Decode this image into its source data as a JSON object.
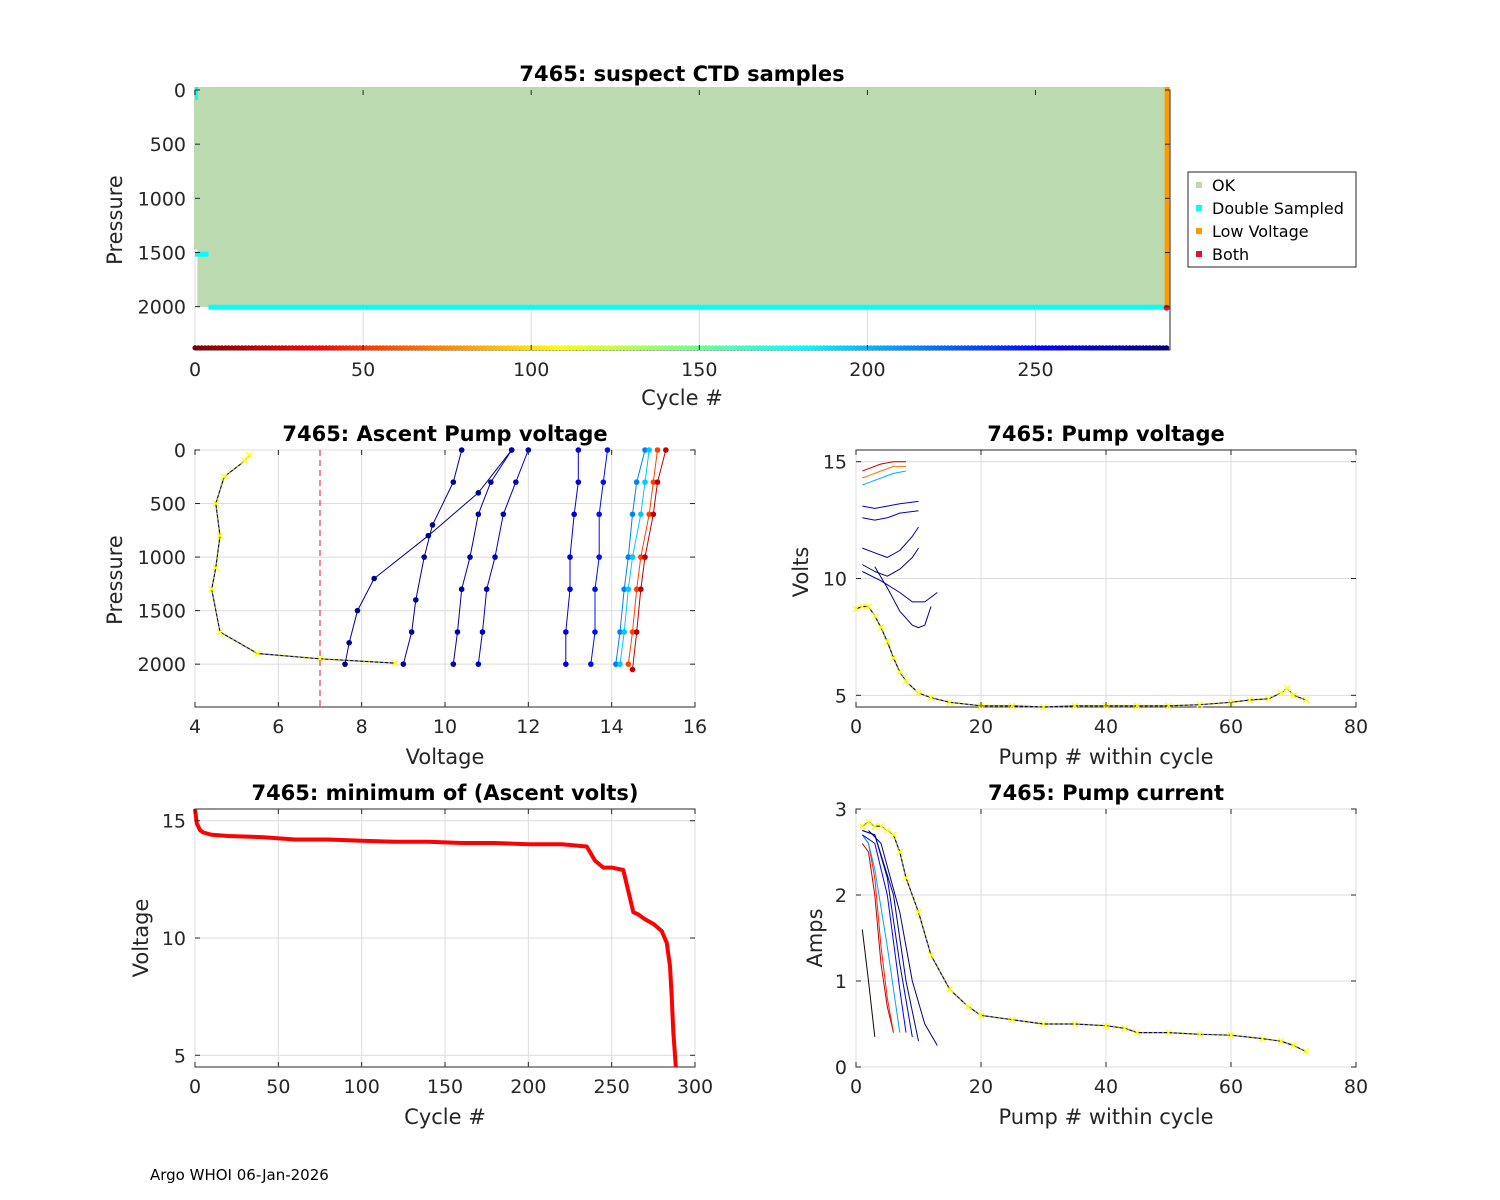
{
  "figure": {
    "footer": "Argo WHOI 06-Jan-2026"
  },
  "colors": {
    "ok": "#bcdab0",
    "double": "#00ffff",
    "low": "#ff9900",
    "both": "#e8102a",
    "yellow": "#ffff00",
    "red": "#ff0000",
    "grid": "#dcdcdc",
    "axis": "#262626"
  },
  "chart_data": [
    {
      "id": "ctd",
      "type": "scatter",
      "title": "7465: suspect CTD samples",
      "xlabel": "Cycle #",
      "ylabel": "Pressure",
      "xlim": [
        0,
        290
      ],
      "ylim": [
        0,
        2400
      ],
      "y_reversed": true,
      "xticks": [
        0,
        50,
        100,
        150,
        200,
        250
      ],
      "yticks": [
        0,
        500,
        1000,
        1500,
        2000
      ],
      "legend": {
        "placement": "outside-right",
        "entries": [
          {
            "label": "OK",
            "color": "#bcdab0"
          },
          {
            "label": "Double Sampled",
            "color": "#00ffff"
          },
          {
            "label": "Low Voltage",
            "color": "#ff9900"
          },
          {
            "label": "Both",
            "color": "#e8102a"
          }
        ]
      },
      "ok_region": {
        "cycles": [
          1,
          289
        ],
        "pressure": [
          0,
          2000
        ]
      },
      "double_sampled_depth": 2010,
      "low_voltage_cycle": 289,
      "cycle_marker_pressure": 2380
    },
    {
      "id": "ascent",
      "type": "line",
      "title": "7465: Ascent Pump voltage",
      "xlabel": "Voltage",
      "ylabel": "Pressure",
      "xlim": [
        4,
        16
      ],
      "ylim": [
        0,
        2400
      ],
      "y_reversed": true,
      "xticks": [
        4,
        6,
        8,
        10,
        12,
        14,
        16
      ],
      "yticks": [
        0,
        500,
        1000,
        1500,
        2000
      ],
      "threshold_voltage": 7,
      "series": [
        {
          "name": "cycle-1",
          "color": "#00008f",
          "x": [
            7.6,
            7.7,
            7.9,
            8.3,
            9.6,
            10.8,
            11.6
          ],
          "y": [
            2000,
            1800,
            1500,
            1200,
            800,
            400,
            0
          ]
        },
        {
          "name": "cycle-2",
          "color": "#000095",
          "x": [
            9.0,
            9.2,
            9.3,
            9.5,
            9.7,
            10.2,
            10.4
          ],
          "y": [
            2000,
            1700,
            1400,
            1000,
            700,
            300,
            0
          ]
        },
        {
          "name": "cycle-3",
          "color": "#0000a8",
          "x": [
            10.2,
            10.3,
            10.4,
            10.6,
            10.8,
            11.1,
            11.6
          ],
          "y": [
            2000,
            1700,
            1300,
            1000,
            600,
            300,
            0
          ]
        },
        {
          "name": "cycle-4",
          "color": "#0000c0",
          "x": [
            10.8,
            10.9,
            11.0,
            11.2,
            11.4,
            11.7,
            12.0
          ],
          "y": [
            2000,
            1700,
            1300,
            1000,
            600,
            300,
            0
          ]
        },
        {
          "name": "cycle-5",
          "color": "#0000d8",
          "x": [
            12.9,
            12.9,
            13.0,
            13.0,
            13.1,
            13.2,
            13.2
          ],
          "y": [
            2000,
            1700,
            1300,
            1000,
            600,
            300,
            0
          ]
        },
        {
          "name": "cycle-6",
          "color": "#0010f0",
          "x": [
            13.5,
            13.6,
            13.6,
            13.7,
            13.7,
            13.8,
            13.9
          ],
          "y": [
            2000,
            1700,
            1300,
            1000,
            600,
            300,
            0
          ]
        },
        {
          "name": "cycle-7",
          "color": "#0080ff",
          "x": [
            14.1,
            14.2,
            14.3,
            14.4,
            14.5,
            14.6,
            14.8
          ],
          "y": [
            2000,
            1700,
            1300,
            1000,
            600,
            300,
            0
          ]
        },
        {
          "name": "cycle-8",
          "color": "#00c8ff",
          "x": [
            14.2,
            14.3,
            14.4,
            14.5,
            14.7,
            14.8,
            14.9
          ],
          "y": [
            2000,
            1700,
            1300,
            1000,
            600,
            300,
            0
          ]
        },
        {
          "name": "cycle-9",
          "color": "#ff4000",
          "x": [
            14.4,
            14.5,
            14.6,
            14.7,
            14.9,
            15.0,
            15.1
          ],
          "y": [
            2000,
            1700,
            1300,
            1000,
            600,
            300,
            0
          ]
        },
        {
          "name": "cycle-10",
          "color": "#c00000",
          "x": [
            14.5,
            14.6,
            14.7,
            14.8,
            15.0,
            15.1,
            15.3
          ],
          "y": [
            2050,
            1700,
            1300,
            1000,
            600,
            300,
            0
          ]
        },
        {
          "name": "last-cycle",
          "color": "#ffff00",
          "marker": "x",
          "x": [
            8.8,
            7.0,
            5.5,
            4.6,
            4.4,
            4.5,
            4.6,
            4.5,
            4.7,
            5.2,
            5.3
          ],
          "y": [
            1990,
            1950,
            1900,
            1700,
            1300,
            1100,
            800,
            500,
            250,
            100,
            50
          ]
        }
      ]
    },
    {
      "id": "pumpv",
      "type": "line",
      "title": "7465: Pump voltage",
      "xlabel": "Pump # within cycle",
      "ylabel": "Volts",
      "xlim": [
        0,
        80
      ],
      "ylim": [
        4.5,
        15.5
      ],
      "xticks": [
        0,
        20,
        40,
        60,
        80
      ],
      "yticks": [
        5,
        10,
        15
      ],
      "series": [
        {
          "name": "cycle-1",
          "color": "#c00000",
          "x": [
            1,
            2,
            4,
            6,
            8
          ],
          "y": [
            14.6,
            14.7,
            14.9,
            15.0,
            15.0
          ]
        },
        {
          "name": "cycle-2",
          "color": "#ff7000",
          "x": [
            1,
            2,
            4,
            6,
            8
          ],
          "y": [
            14.3,
            14.4,
            14.6,
            14.8,
            14.8
          ]
        },
        {
          "name": "cycle-3",
          "color": "#00b0ff",
          "x": [
            1,
            2,
            4,
            6,
            8
          ],
          "y": [
            14.0,
            14.1,
            14.3,
            14.5,
            14.6
          ]
        },
        {
          "name": "cycle-4",
          "color": "#0000c8",
          "x": [
            1,
            3,
            5,
            7,
            10
          ],
          "y": [
            13.1,
            13.0,
            13.1,
            13.2,
            13.3
          ]
        },
        {
          "name": "cycle-5",
          "color": "#0000c8",
          "x": [
            1,
            3,
            5,
            7,
            10
          ],
          "y": [
            12.6,
            12.5,
            12.6,
            12.8,
            12.9
          ]
        },
        {
          "name": "cycle-6",
          "color": "#000095",
          "x": [
            1,
            3,
            5,
            7,
            9,
            10
          ],
          "y": [
            11.3,
            11.1,
            10.9,
            11.2,
            11.8,
            12.2
          ]
        },
        {
          "name": "cycle-7",
          "color": "#000080",
          "x": [
            1,
            3,
            5,
            7,
            9,
            10
          ],
          "y": [
            10.6,
            10.3,
            10.1,
            10.4,
            10.9,
            11.3
          ]
        },
        {
          "name": "cycle-8",
          "color": "#00008f",
          "x": [
            1,
            4,
            7,
            9,
            11,
            13
          ],
          "y": [
            10.3,
            9.9,
            9.4,
            9.0,
            9.0,
            9.4
          ]
        },
        {
          "name": "cycle-9",
          "color": "#000070",
          "x": [
            3,
            5,
            7,
            9,
            10,
            11,
            12
          ],
          "y": [
            10.5,
            9.6,
            8.6,
            8.0,
            7.9,
            8.0,
            8.8
          ]
        },
        {
          "name": "last-cycle",
          "color": "#ffff00",
          "marker": "x",
          "x": [
            0,
            1,
            2,
            3,
            4,
            5,
            6,
            7,
            8,
            10,
            12,
            15,
            20,
            25,
            30,
            35,
            40,
            45,
            50,
            55,
            60,
            63,
            66,
            68,
            69,
            70,
            72
          ],
          "y": [
            8.7,
            8.8,
            8.8,
            8.4,
            7.9,
            7.3,
            6.6,
            6.0,
            5.6,
            5.1,
            4.9,
            4.7,
            4.55,
            4.55,
            4.5,
            4.55,
            4.55,
            4.55,
            4.55,
            4.6,
            4.7,
            4.8,
            4.85,
            5.1,
            5.3,
            5.0,
            4.8
          ]
        }
      ]
    },
    {
      "id": "minv",
      "type": "line",
      "title": "7465: minimum of (Ascent volts)",
      "xlabel": "Cycle #",
      "ylabel": "Voltage",
      "xlim": [
        0,
        300
      ],
      "ylim": [
        4.5,
        15.5
      ],
      "xticks": [
        0,
        50,
        100,
        150,
        200,
        250,
        300
      ],
      "yticks": [
        5,
        10,
        15
      ],
      "series": [
        {
          "name": "min-volts",
          "color": "#ff0000",
          "x": [
            0,
            1,
            3,
            5,
            10,
            20,
            40,
            60,
            80,
            100,
            120,
            140,
            160,
            180,
            200,
            220,
            235,
            240,
            245,
            250,
            257,
            260,
            263,
            266,
            270,
            275,
            280,
            283,
            285,
            286,
            287,
            288,
            288.5
          ],
          "y": [
            15.5,
            14.9,
            14.6,
            14.5,
            14.4,
            14.35,
            14.3,
            14.2,
            14.2,
            14.15,
            14.1,
            14.1,
            14.05,
            14.05,
            14.0,
            14.0,
            13.9,
            13.3,
            13.0,
            13.0,
            12.9,
            12.0,
            11.1,
            11.0,
            10.8,
            10.6,
            10.3,
            9.8,
            8.8,
            7.5,
            6.0,
            5.0,
            4.5
          ]
        }
      ]
    },
    {
      "id": "pumpc",
      "type": "line",
      "title": "7465: Pump current",
      "xlabel": "Pump # within cycle",
      "ylabel": "Amps",
      "xlim": [
        0,
        80
      ],
      "ylim": [
        0,
        3
      ],
      "xticks": [
        0,
        20,
        40,
        60,
        80
      ],
      "yticks": [
        0,
        1,
        2,
        3
      ],
      "series": [
        {
          "name": "cycle-1",
          "color": "#c00000",
          "x": [
            1,
            2,
            3,
            4,
            5,
            6
          ],
          "y": [
            2.6,
            2.5,
            2.0,
            1.2,
            0.7,
            0.4
          ]
        },
        {
          "name": "cycle-2",
          "color": "#ff2000",
          "x": [
            1,
            2,
            3,
            4,
            5,
            6
          ],
          "y": [
            2.7,
            2.6,
            2.2,
            1.4,
            0.8,
            0.4
          ]
        },
        {
          "name": "cycle-3",
          "color": "#00a0ff",
          "x": [
            1,
            2,
            3,
            5,
            7
          ],
          "y": [
            2.7,
            2.6,
            2.3,
            1.4,
            0.4
          ]
        },
        {
          "name": "cycle-4",
          "color": "#0000ff",
          "x": [
            1,
            3,
            5,
            7,
            8
          ],
          "y": [
            2.7,
            2.6,
            2.0,
            0.9,
            0.4
          ]
        },
        {
          "name": "cycle-5",
          "color": "#0000c0",
          "x": [
            1,
            3,
            5,
            7,
            9
          ],
          "y": [
            2.75,
            2.7,
            2.2,
            1.2,
            0.35
          ]
        },
        {
          "name": "cycle-6",
          "color": "#000095",
          "x": [
            1,
            3,
            6,
            8,
            10
          ],
          "y": [
            2.75,
            2.7,
            2.0,
            1.0,
            0.3
          ]
        },
        {
          "name": "cycle-7",
          "color": "#000080",
          "x": [
            2,
            4,
            7,
            9,
            11,
            13
          ],
          "y": [
            2.75,
            2.6,
            1.8,
            1.0,
            0.5,
            0.25
          ]
        },
        {
          "name": "cycle-8",
          "color": "#200000",
          "x": [
            1,
            2,
            3
          ],
          "y": [
            1.6,
            1.0,
            0.35
          ]
        },
        {
          "name": "last-cycle",
          "color": "#ffff00",
          "marker": "x",
          "x": [
            1,
            2,
            3,
            4,
            5,
            6,
            7,
            8,
            10,
            12,
            15,
            18,
            20,
            25,
            30,
            35,
            40,
            43,
            45,
            50,
            55,
            60,
            65,
            68,
            70,
            72
          ],
          "y": [
            2.8,
            2.85,
            2.8,
            2.8,
            2.75,
            2.7,
            2.5,
            2.2,
            1.8,
            1.3,
            0.9,
            0.7,
            0.6,
            0.55,
            0.5,
            0.5,
            0.48,
            0.45,
            0.4,
            0.4,
            0.38,
            0.37,
            0.33,
            0.3,
            0.25,
            0.18
          ]
        }
      ]
    }
  ]
}
